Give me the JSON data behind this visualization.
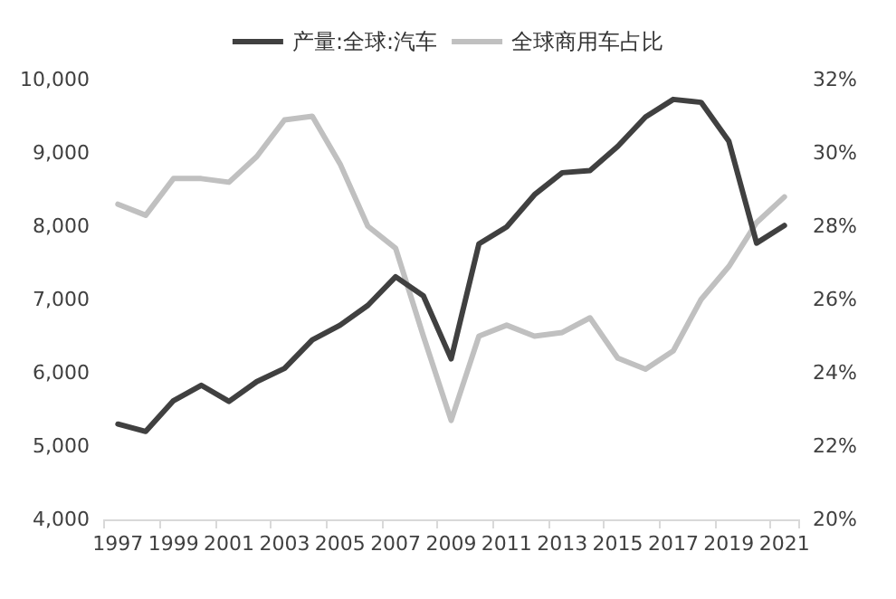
{
  "chart_data": {
    "type": "line",
    "categories": [
      "1997",
      null,
      "1999",
      null,
      "2001",
      null,
      "2003",
      null,
      "2005",
      null,
      "2007",
      null,
      "2009",
      null,
      "2011",
      null,
      "2013",
      null,
      "2015",
      null,
      "2017",
      null,
      "2019",
      null,
      "2021"
    ],
    "series": [
      {
        "name": "产量:全球:汽车",
        "color": "#404040",
        "values": [
          5300,
          5200,
          5620,
          5830,
          5610,
          5880,
          6060,
          6450,
          6650,
          6920,
          7310,
          7050,
          6190,
          7760,
          7990,
          8430,
          8730,
          8760,
          9090,
          9490,
          9730,
          9690,
          9160,
          7770,
          8010
        ]
      },
      {
        "name": "全球商用车占比",
        "color": "#c0c0c0",
        "axis": "y2",
        "values": [
          28.6,
          28.3,
          29.3,
          29.3,
          29.2,
          29.9,
          30.9,
          31.0,
          29.7,
          28.0,
          27.4,
          25.0,
          22.7,
          25.0,
          25.3,
          25.0,
          25.1,
          25.5,
          24.4,
          24.1,
          24.6,
          26.0,
          26.9,
          28.1,
          28.8
        ]
      }
    ],
    "ylim": [
      4000,
      10000
    ],
    "yticks": [
      {
        "value": 4000,
        "label": "4,000"
      },
      {
        "value": 5000,
        "label": "5,000"
      },
      {
        "value": 6000,
        "label": "6,000"
      },
      {
        "value": 7000,
        "label": "7,000"
      },
      {
        "value": 8000,
        "label": "8,000"
      },
      {
        "value": 9000,
        "label": "9,000"
      },
      {
        "value": 10000,
        "label": "10,000"
      }
    ],
    "y2lim": [
      20,
      32
    ],
    "y2ticks": [
      {
        "value": 20,
        "label": "20%"
      },
      {
        "value": 22,
        "label": "22%"
      },
      {
        "value": 24,
        "label": "24%"
      },
      {
        "value": 26,
        "label": "26%"
      },
      {
        "value": 28,
        "label": "28%"
      },
      {
        "value": 30,
        "label": "30%"
      },
      {
        "value": 32,
        "label": "32%"
      }
    ],
    "grid": false,
    "legend": "top",
    "marker": "none",
    "line_style": "solid"
  }
}
